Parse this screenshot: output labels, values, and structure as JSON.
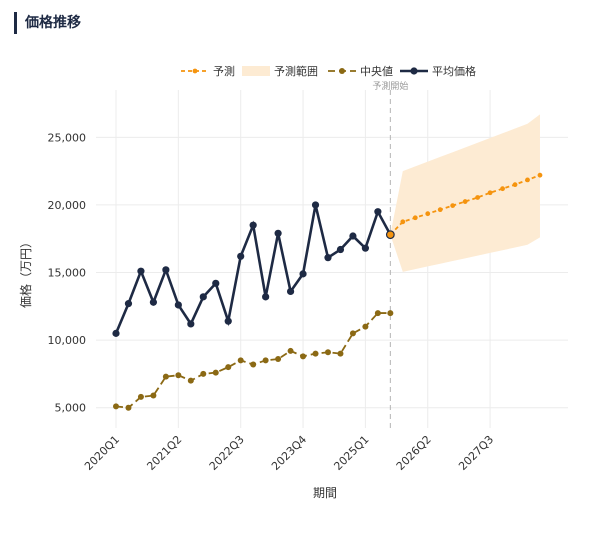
{
  "header": {
    "title": "価格推移"
  },
  "chart_data": {
    "type": "line",
    "xlabel": "期間",
    "ylabel": "価格（万円）",
    "ylim": [
      3500,
      28500
    ],
    "yticks": [
      5000,
      10000,
      15000,
      20000,
      25000
    ],
    "ytick_labels": [
      "5,000",
      "10,000",
      "15,000",
      "20,000",
      "25,000"
    ],
    "xtick_labels": [
      "2020Q1",
      "2021Q2",
      "2022Q3",
      "2023Q4",
      "2025Q1",
      "2026Q2",
      "2027Q3"
    ],
    "xtick_index": [
      0,
      5,
      10,
      15,
      20,
      25,
      30
    ],
    "legend_position": "top-center",
    "annotation": {
      "label": "予測開始",
      "index": 22
    },
    "periods": [
      "2020Q1",
      "2020Q2",
      "2020Q3",
      "2020Q4",
      "2021Q1",
      "2021Q2",
      "2021Q3",
      "2021Q4",
      "2022Q1",
      "2022Q2",
      "2022Q3",
      "2022Q4",
      "2023Q1",
      "2023Q2",
      "2023Q3",
      "2023Q4",
      "2024Q1",
      "2024Q2",
      "2024Q3",
      "2024Q4",
      "2025Q1",
      "2025Q2",
      "2025Q3"
    ],
    "series": [
      {
        "name": "平均価格",
        "color": "#1e2a44",
        "values": [
          10500,
          12700,
          15100,
          12800,
          15200,
          12600,
          11200,
          13200,
          14200,
          11400,
          16200,
          18500,
          13200,
          17900,
          13600,
          14900,
          20000,
          16100,
          16700,
          17700,
          16800,
          19500,
          17800
        ]
      },
      {
        "name": "中央値",
        "color": "#8b6914",
        "values": [
          5100,
          5000,
          5800,
          5900,
          7300,
          7400,
          7000,
          7500,
          7600,
          8000,
          8500,
          8200,
          8500,
          8600,
          9200,
          8800,
          9000,
          9100,
          9000,
          10500,
          11000,
          12000,
          12000
        ]
      }
    ],
    "forecast": {
      "name": "予測",
      "color": "#f5940f",
      "start_index": 22,
      "end_index": 34,
      "values": [
        17800,
        18750,
        19050,
        19350,
        19650,
        19950,
        20250,
        20550,
        20900,
        21200,
        21500,
        21850,
        22200
      ]
    },
    "forecast_range": {
      "name": "予測範囲",
      "color": "#fdebd3",
      "upper": [
        17800,
        22500,
        22850,
        23200,
        23550,
        23900,
        24250,
        24600,
        24950,
        25300,
        25650,
        26000,
        26700
      ],
      "lower": [
        17800,
        15050,
        15250,
        15450,
        15650,
        15850,
        16050,
        16250,
        16450,
        16650,
        16850,
        17050,
        17600
      ]
    }
  }
}
